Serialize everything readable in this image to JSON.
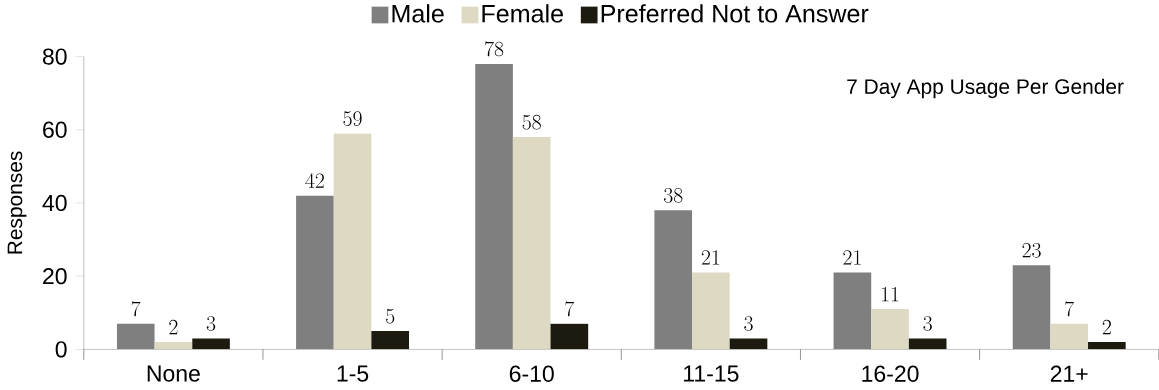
{
  "chart_data": {
    "type": "bar",
    "title": "7 Day App Usage Per Gender",
    "ylabel": "Responses",
    "categories": [
      "None",
      "1-5",
      "6-10",
      "11-15",
      "16-20",
      "21+"
    ],
    "series": [
      {
        "name": "Male",
        "color": "#7f7f7f",
        "values": [
          7,
          42,
          78,
          38,
          21,
          23
        ]
      },
      {
        "name": "Female",
        "color": "#ddd9c3",
        "values": [
          2,
          59,
          58,
          21,
          11,
          7
        ]
      },
      {
        "name": "Preferred Not to Answer",
        "color": "#1d1b10",
        "values": [
          3,
          5,
          7,
          3,
          3,
          2
        ]
      }
    ],
    "ylim": [
      0,
      80
    ],
    "yticks": [
      0,
      20,
      40,
      60,
      80
    ],
    "data_labels": true,
    "legend": "top",
    "grid": false
  }
}
